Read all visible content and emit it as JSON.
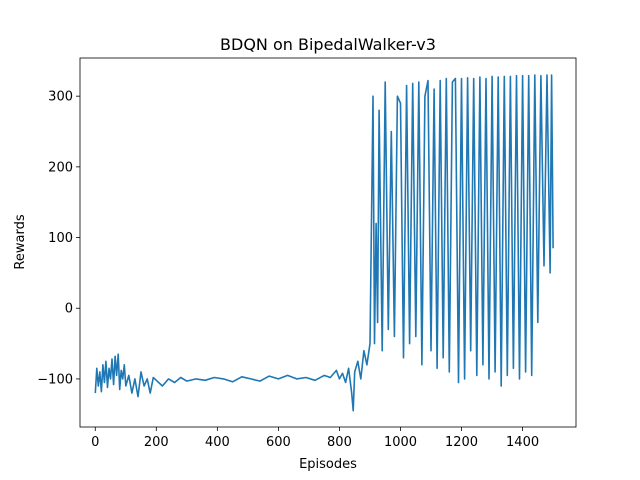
{
  "chart_data": {
    "type": "line",
    "title": "BDQN on BipedalWalker-v3",
    "xlabel": "Episodes",
    "ylabel": "Rewards",
    "xlim": [
      -50,
      1575
    ],
    "ylim": [
      -168,
      354
    ],
    "xticks": [
      0,
      200,
      400,
      600,
      800,
      1000,
      1200,
      1400
    ],
    "yticks": [
      -100,
      0,
      100,
      200,
      300
    ],
    "color": "#1f77b4",
    "grid": false,
    "legend": "none",
    "series": [
      {
        "x": [
          0,
          5,
          10,
          15,
          20,
          25,
          30,
          35,
          40,
          45,
          50,
          55,
          60,
          65,
          70,
          75,
          80,
          85,
          90,
          95,
          100,
          110,
          120,
          130,
          140,
          150,
          160,
          170,
          180,
          190,
          200,
          220,
          240,
          260,
          280,
          300,
          330,
          360,
          390,
          420,
          450,
          480,
          510,
          540,
          570,
          600,
          630,
          660,
          690,
          720,
          750,
          770,
          790,
          800,
          810,
          820,
          830,
          840,
          845,
          850,
          860,
          870,
          880,
          890,
          900,
          910,
          915,
          920,
          925,
          930,
          940,
          950,
          960,
          970,
          980,
          990,
          1000,
          1010,
          1020,
          1030,
          1040,
          1050,
          1060,
          1070,
          1080,
          1090,
          1100,
          1110,
          1120,
          1130,
          1140,
          1150,
          1160,
          1170,
          1180,
          1190,
          1200,
          1210,
          1220,
          1230,
          1240,
          1250,
          1260,
          1270,
          1280,
          1290,
          1300,
          1310,
          1320,
          1330,
          1340,
          1350,
          1360,
          1370,
          1380,
          1390,
          1400,
          1410,
          1420,
          1430,
          1440,
          1450,
          1460,
          1470,
          1480,
          1490,
          1495,
          1500
        ],
        "y": [
          -120,
          -85,
          -110,
          -90,
          -118,
          -80,
          -105,
          -75,
          -112,
          -85,
          -100,
          -72,
          -108,
          -68,
          -95,
          -65,
          -115,
          -88,
          -100,
          -80,
          -110,
          -95,
          -120,
          -100,
          -125,
          -90,
          -110,
          -100,
          -120,
          -98,
          -102,
          -110,
          -100,
          -105,
          -98,
          -103,
          -100,
          -102,
          -98,
          -100,
          -104,
          -97,
          -100,
          -103,
          -96,
          -100,
          -95,
          -100,
          -98,
          -102,
          -95,
          -98,
          -88,
          -100,
          -92,
          -105,
          -85,
          -120,
          -145,
          -90,
          -75,
          -100,
          -60,
          -80,
          -50,
          300,
          -50,
          120,
          -20,
          280,
          -60,
          320,
          -30,
          250,
          -40,
          300,
          290,
          -70,
          315,
          -50,
          318,
          -40,
          320,
          -80,
          300,
          322,
          -60,
          310,
          -85,
          322,
          -70,
          325,
          -90,
          320,
          325,
          -105,
          325,
          -100,
          326,
          -60,
          325,
          -95,
          327,
          -80,
          325,
          -100,
          328,
          -90,
          327,
          -110,
          328,
          -95,
          328,
          -85,
          329,
          -100,
          329,
          -90,
          329,
          -95,
          330,
          -20,
          329,
          60,
          330,
          50,
          330,
          85
        ]
      }
    ]
  }
}
